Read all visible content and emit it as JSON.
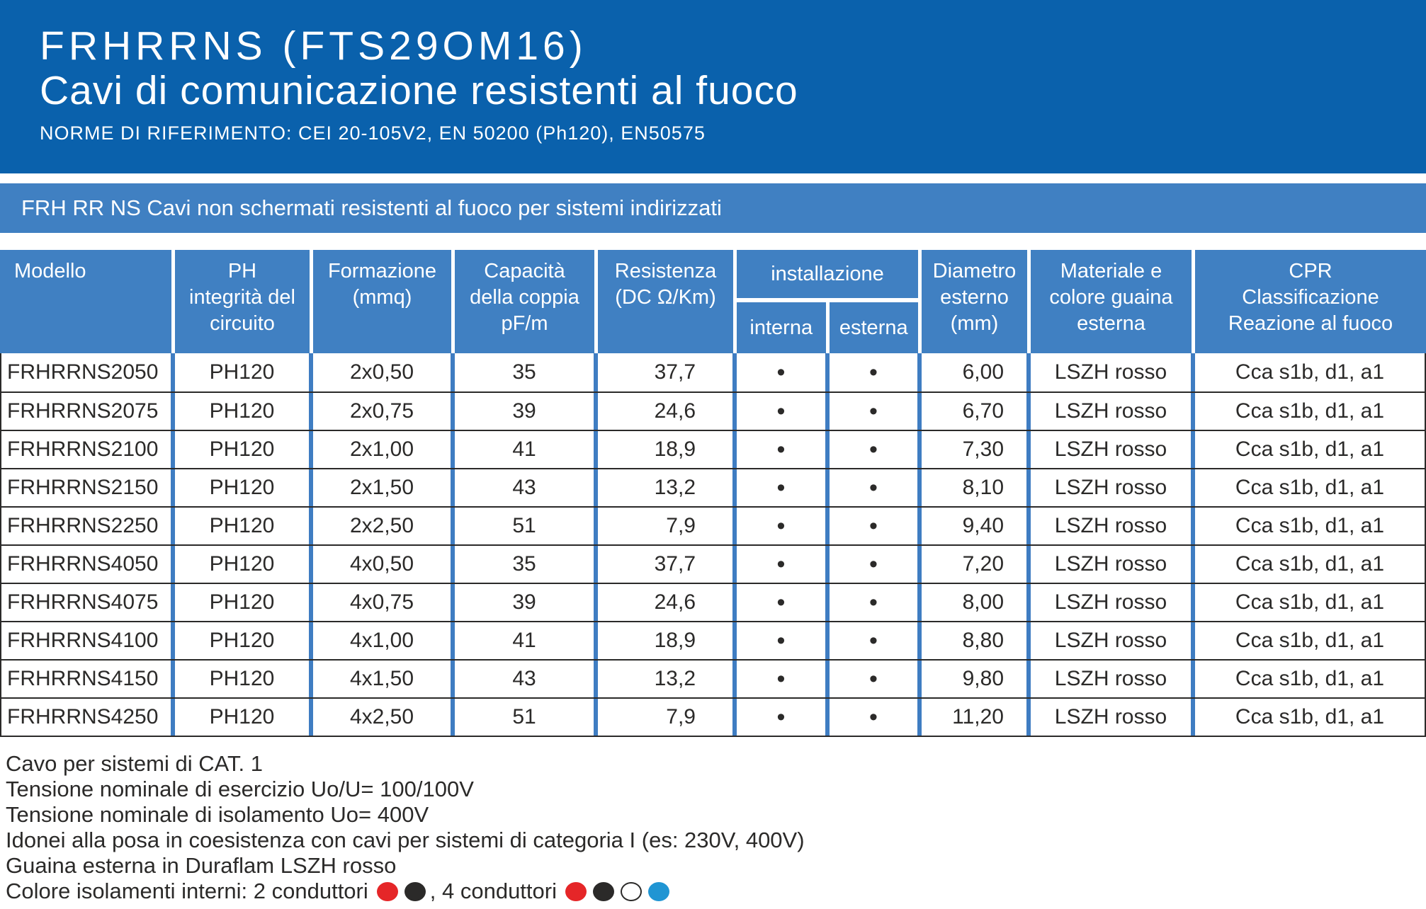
{
  "colors": {
    "band_blue": "#0a61ac",
    "panel_blue": "#4080c2",
    "bar_blue": "#3f7dc2",
    "text_dark": "#2b2a29",
    "red": "#e52628",
    "black": "#2b2a29",
    "white": "#ffffff",
    "blue": "#2095d3"
  },
  "header": {
    "title": "FRHRRNS (FTS29OM16)",
    "subtitle": "Cavi di comunicazione resistenti al fuoco",
    "norms": "NORME DI RIFERIMENTO: CEI 20-105V2, EN 50200 (Ph120), EN50575"
  },
  "banner": {
    "text": "FRH RR NS Cavi non schermati resistenti al fuoco per sistemi indirizzati"
  },
  "table": {
    "header": {
      "model": "Modello",
      "ph": "PH\nintegrità del\ncircuito",
      "formazione": "Formazione\n(mmq)",
      "capacita": "Capacità\ndella coppia\npF/m",
      "resistenza": "Resistenza\n(DC Ω/Km)",
      "installazione": "installazione",
      "interna": "interna",
      "esterna": "esterna",
      "diametro": "Diametro\nesterno\n(mm)",
      "materiale": "Materiale e\ncolore guaina\nesterna",
      "cpr": "CPR\nClassificazione\nReazione al fuoco"
    },
    "rows": [
      {
        "model": "FRHRRNS2050",
        "ph": "PH120",
        "formazione": "2x0,50",
        "capacita": "35",
        "resistenza": "37,7",
        "interna": "•",
        "esterna": "•",
        "diametro": "6,00",
        "materiale": "LSZH rosso",
        "cpr": "Cca s1b, d1, a1"
      },
      {
        "model": "FRHRRNS2075",
        "ph": "PH120",
        "formazione": "2x0,75",
        "capacita": "39",
        "resistenza": "24,6",
        "interna": "•",
        "esterna": "•",
        "diametro": "6,70",
        "materiale": "LSZH rosso",
        "cpr": "Cca s1b, d1, a1"
      },
      {
        "model": "FRHRRNS2100",
        "ph": "PH120",
        "formazione": "2x1,00",
        "capacita": "41",
        "resistenza": "18,9",
        "interna": "•",
        "esterna": "•",
        "diametro": "7,30",
        "materiale": "LSZH rosso",
        "cpr": "Cca s1b, d1, a1"
      },
      {
        "model": "FRHRRNS2150",
        "ph": "PH120",
        "formazione": "2x1,50",
        "capacita": "43",
        "resistenza": "13,2",
        "interna": "•",
        "esterna": "•",
        "diametro": "8,10",
        "materiale": "LSZH rosso",
        "cpr": "Cca s1b, d1, a1"
      },
      {
        "model": "FRHRRNS2250",
        "ph": "PH120",
        "formazione": "2x2,50",
        "capacita": "51",
        "resistenza": "7,9",
        "interna": "•",
        "esterna": "•",
        "diametro": "9,40",
        "materiale": "LSZH rosso",
        "cpr": "Cca s1b, d1, a1"
      },
      {
        "model": "FRHRRNS4050",
        "ph": "PH120",
        "formazione": "4x0,50",
        "capacita": "35",
        "resistenza": "37,7",
        "interna": "•",
        "esterna": "•",
        "diametro": "7,20",
        "materiale": "LSZH rosso",
        "cpr": "Cca s1b, d1, a1"
      },
      {
        "model": "FRHRRNS4075",
        "ph": "PH120",
        "formazione": "4x0,75",
        "capacita": "39",
        "resistenza": "24,6",
        "interna": "•",
        "esterna": "•",
        "diametro": "8,00",
        "materiale": "LSZH rosso",
        "cpr": "Cca s1b, d1, a1"
      },
      {
        "model": "FRHRRNS4100",
        "ph": "PH120",
        "formazione": "4x1,00",
        "capacita": "41",
        "resistenza": "18,9",
        "interna": "•",
        "esterna": "•",
        "diametro": "8,80",
        "materiale": "LSZH rosso",
        "cpr": "Cca s1b, d1, a1"
      },
      {
        "model": "FRHRRNS4150",
        "ph": "PH120",
        "formazione": "4x1,50",
        "capacita": "43",
        "resistenza": "13,2",
        "interna": "•",
        "esterna": "•",
        "diametro": "9,80",
        "materiale": "LSZH rosso",
        "cpr": "Cca s1b, d1, a1"
      },
      {
        "model": "FRHRRNS4250",
        "ph": "PH120",
        "formazione": "4x2,50",
        "capacita": "51",
        "resistenza": "7,9",
        "interna": "•",
        "esterna": "•",
        "diametro": "11,20",
        "materiale": "LSZH rosso",
        "cpr": "Cca s1b, d1, a1"
      }
    ]
  },
  "footer": {
    "lines": [
      "Cavo per sistemi di CAT. 1",
      "Tensione nominale di esercizio Uo/U= 100/100V",
      "Tensione nominale di isolamento Uo= 400V",
      "Idonei alla posa in coesistenza con cavi per sistemi di categoria I (es: 230V, 400V)",
      "Guaina esterna in Duraflam LSZH rosso"
    ],
    "colors_line": {
      "prefix": "Colore isolamenti interni: 2 conduttori",
      "middle": ", 4 conduttori",
      "two_conductor_dots": [
        "red",
        "black"
      ],
      "four_conductor_dots": [
        "red",
        "black",
        "white",
        "blue"
      ]
    }
  }
}
